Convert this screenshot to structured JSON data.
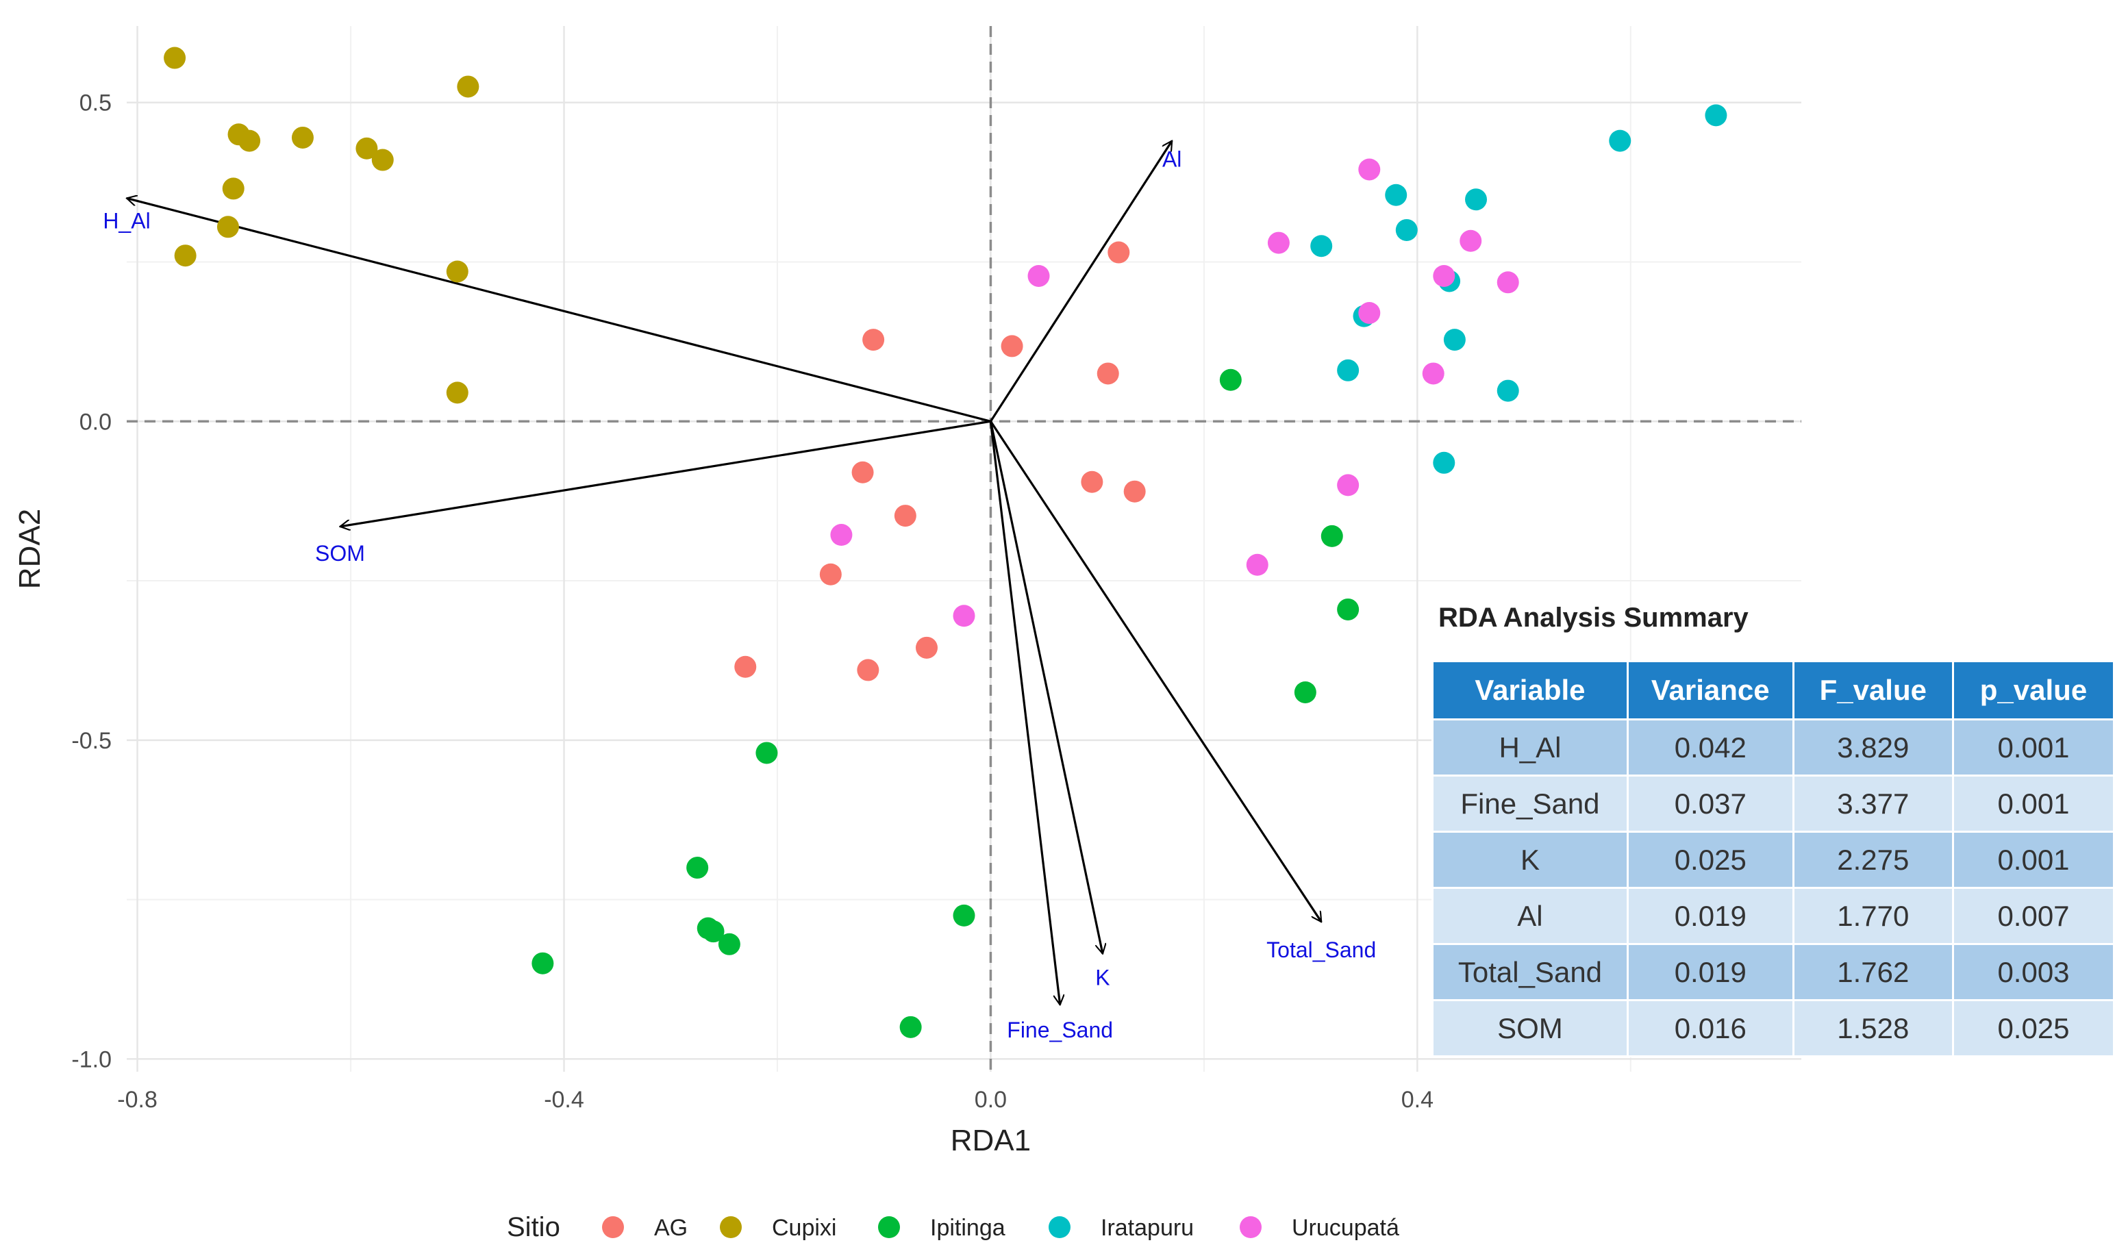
{
  "chart_data": {
    "type": "scatter",
    "title": "",
    "xlabel": "RDA1",
    "ylabel": "RDA2",
    "xlim": [
      -0.81,
      0.76
    ],
    "ylim": [
      -1.02,
      0.62
    ],
    "x_ticks": [
      -0.8,
      -0.4,
      0.0,
      0.4
    ],
    "x_tick_labels": [
      "-0.8",
      "-0.4",
      "0.0",
      "0.4"
    ],
    "y_ticks": [
      0.5,
      0.0,
      -0.5,
      -1.0
    ],
    "y_tick_labels": [
      "0.5",
      "0.0",
      "-0.5",
      "-1.0"
    ],
    "grid": true,
    "reference_lines": {
      "x": 0,
      "y": 0
    },
    "legend": {
      "title": "Sitio",
      "placement": "bottom"
    },
    "series": [
      {
        "name": "AG",
        "color": "#F8766D",
        "points": [
          [
            0.12,
            0.265
          ],
          [
            0.02,
            0.118
          ],
          [
            0.11,
            0.075
          ],
          [
            -0.11,
            0.128
          ],
          [
            -0.12,
            -0.08
          ],
          [
            -0.08,
            -0.148
          ],
          [
            0.095,
            -0.095
          ],
          [
            0.135,
            -0.11
          ],
          [
            -0.15,
            -0.24
          ],
          [
            -0.23,
            -0.385
          ],
          [
            -0.115,
            -0.39
          ],
          [
            -0.06,
            -0.355
          ]
        ]
      },
      {
        "name": "Cupixi",
        "color": "#B79F00",
        "points": [
          [
            -0.765,
            0.57
          ],
          [
            -0.49,
            0.525
          ],
          [
            -0.705,
            0.45
          ],
          [
            -0.695,
            0.44
          ],
          [
            -0.645,
            0.445
          ],
          [
            -0.585,
            0.428
          ],
          [
            -0.57,
            0.41
          ],
          [
            -0.71,
            0.365
          ],
          [
            -0.715,
            0.305
          ],
          [
            -0.755,
            0.26
          ],
          [
            -0.5,
            0.235
          ],
          [
            -0.5,
            0.045
          ]
        ]
      },
      {
        "name": "Ipitinga",
        "color": "#00BA38",
        "points": [
          [
            0.225,
            0.065
          ],
          [
            0.32,
            -0.18
          ],
          [
            0.335,
            -0.295
          ],
          [
            0.295,
            -0.425
          ],
          [
            -0.21,
            -0.52
          ],
          [
            -0.275,
            -0.7
          ],
          [
            -0.265,
            -0.795
          ],
          [
            -0.26,
            -0.8
          ],
          [
            -0.245,
            -0.82
          ],
          [
            -0.42,
            -0.85
          ],
          [
            -0.025,
            -0.775
          ],
          [
            -0.075,
            -0.95
          ]
        ]
      },
      {
        "name": "Iratapuru",
        "color": "#00BFC4",
        "points": [
          [
            0.68,
            0.48
          ],
          [
            0.59,
            0.44
          ],
          [
            0.38,
            0.355
          ],
          [
            0.455,
            0.348
          ],
          [
            0.39,
            0.3
          ],
          [
            0.31,
            0.275
          ],
          [
            0.43,
            0.22
          ],
          [
            0.35,
            0.165
          ],
          [
            0.435,
            0.128
          ],
          [
            0.335,
            0.08
          ],
          [
            0.485,
            0.048
          ],
          [
            0.425,
            -0.065
          ]
        ]
      },
      {
        "name": "Urucupatá",
        "color": "#F564E3",
        "points": [
          [
            0.355,
            0.395
          ],
          [
            0.27,
            0.28
          ],
          [
            0.45,
            0.283
          ],
          [
            0.425,
            0.228
          ],
          [
            0.485,
            0.218
          ],
          [
            0.355,
            0.17
          ],
          [
            0.045,
            0.228
          ],
          [
            0.415,
            0.075
          ],
          [
            0.335,
            -0.1
          ],
          [
            -0.14,
            -0.178
          ],
          [
            0.25,
            -0.225
          ],
          [
            -0.025,
            -0.305
          ]
        ]
      }
    ],
    "biplot_arrows": [
      {
        "label": "H_Al",
        "x": -0.81,
        "y": 0.35
      },
      {
        "label": "SOM",
        "x": -0.61,
        "y": -0.165
      },
      {
        "label": "Al",
        "x": 0.17,
        "y": 0.44
      },
      {
        "label": "Fine_Sand",
        "x": 0.065,
        "y": -0.915
      },
      {
        "label": "K",
        "x": 0.105,
        "y": -0.835
      },
      {
        "label": "Total_Sand",
        "x": 0.31,
        "y": -0.785
      }
    ]
  },
  "summary": {
    "title": "RDA Analysis Summary",
    "headers": [
      "Variable",
      "Variance",
      "F_value",
      "p_value"
    ],
    "rows": [
      [
        "H_Al",
        "0.042",
        "3.829",
        "0.001"
      ],
      [
        "Fine_Sand",
        "0.037",
        "3.377",
        "0.001"
      ],
      [
        "K",
        "0.025",
        "2.275",
        "0.001"
      ],
      [
        "Al",
        "0.019",
        "1.770",
        "0.007"
      ],
      [
        "Total_Sand",
        "0.019",
        "1.762",
        "0.003"
      ],
      [
        "SOM",
        "0.016",
        "1.528",
        "0.025"
      ]
    ]
  }
}
